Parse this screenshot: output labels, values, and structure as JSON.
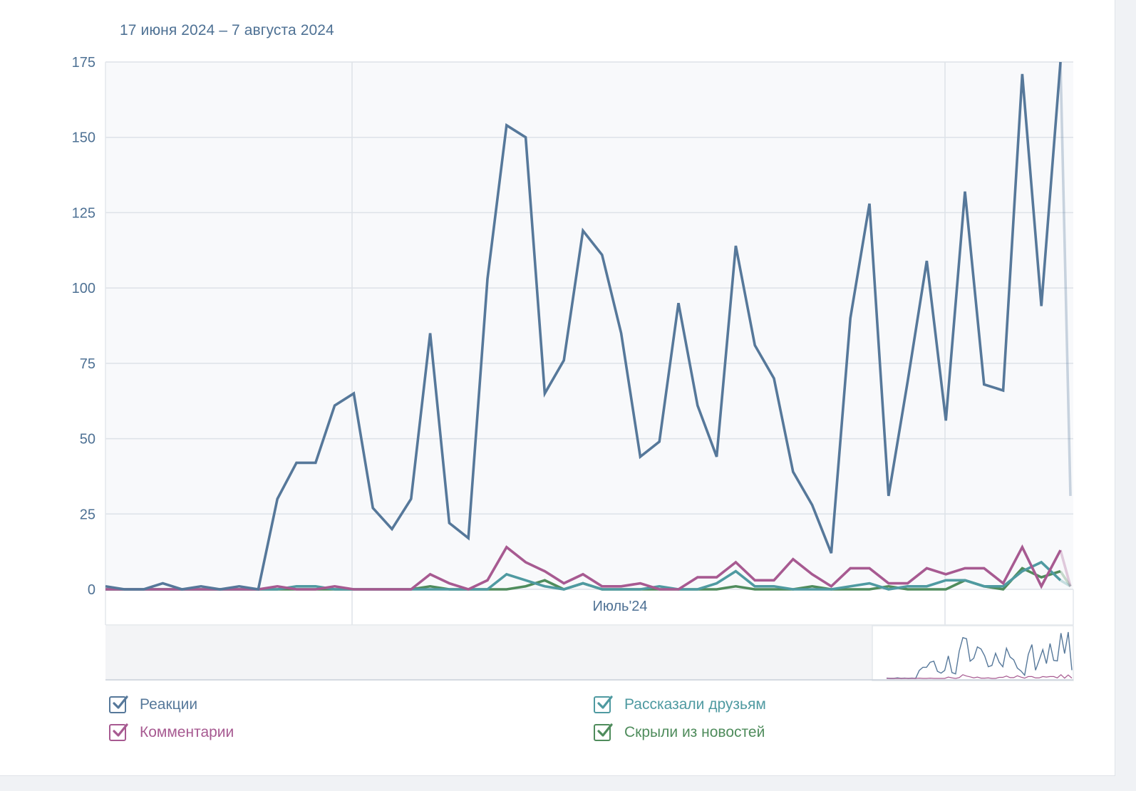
{
  "date_range": "17 июня 2024 – 7 августа 2024",
  "colors": {
    "reactions": "#56789a",
    "comments": "#a75a91",
    "shares": "#4f9aa1",
    "hidden": "#4f8c5c"
  },
  "chart_data": {
    "type": "line",
    "x_start": "2024-06-17",
    "x_end": "2024-08-07",
    "ylim": [
      0,
      175
    ],
    "y_ticks": [
      0,
      25,
      50,
      75,
      100,
      125,
      150,
      175
    ],
    "x_tick_label": "Июль'24",
    "grid": true,
    "legend_position": "bottom",
    "series": [
      {
        "key": "reactions",
        "name": "Реакции",
        "values": [
          1,
          0,
          0,
          2,
          0,
          1,
          0,
          1,
          0,
          30,
          42,
          42,
          61,
          65,
          27,
          20,
          30,
          85,
          22,
          17,
          103,
          154,
          150,
          65,
          76,
          119,
          111,
          85,
          44,
          49,
          95,
          61,
          44,
          114,
          81,
          70,
          39,
          28,
          12,
          90,
          128,
          31,
          69,
          109,
          56,
          132,
          68,
          66,
          171,
          94,
          175,
          31
        ]
      },
      {
        "key": "comments",
        "name": "Комментарии",
        "values": [
          0,
          0,
          0,
          0,
          0,
          0,
          0,
          0,
          0,
          1,
          0,
          0,
          1,
          0,
          0,
          0,
          0,
          5,
          2,
          0,
          3,
          14,
          9,
          6,
          2,
          5,
          1,
          1,
          2,
          0,
          0,
          4,
          4,
          9,
          3,
          3,
          10,
          5,
          1,
          7,
          7,
          2,
          2,
          7,
          5,
          7,
          7,
          2,
          14,
          1,
          13,
          1
        ]
      },
      {
        "key": "shares",
        "name": "Рассказали друзьям",
        "values": [
          0,
          0,
          0,
          0,
          0,
          0,
          0,
          0,
          0,
          0,
          1,
          1,
          0,
          0,
          0,
          0,
          0,
          0,
          0,
          0,
          0,
          5,
          3,
          1,
          0,
          2,
          0,
          0,
          0,
          1,
          0,
          0,
          2,
          6,
          1,
          1,
          0,
          0,
          0,
          1,
          2,
          0,
          1,
          1,
          3,
          3,
          1,
          1,
          6,
          9,
          3,
          1
        ]
      },
      {
        "key": "hidden",
        "name": "Скрыли из новостей",
        "values": [
          0,
          0,
          0,
          0,
          0,
          0,
          0,
          0,
          0,
          0,
          0,
          0,
          0,
          0,
          0,
          0,
          0,
          1,
          0,
          0,
          0,
          0,
          1,
          3,
          0,
          2,
          0,
          0,
          0,
          0,
          0,
          0,
          0,
          1,
          0,
          0,
          0,
          1,
          0,
          0,
          0,
          1,
          0,
          0,
          0,
          3,
          1,
          0,
          7,
          4,
          6,
          1
        ]
      }
    ]
  }
}
